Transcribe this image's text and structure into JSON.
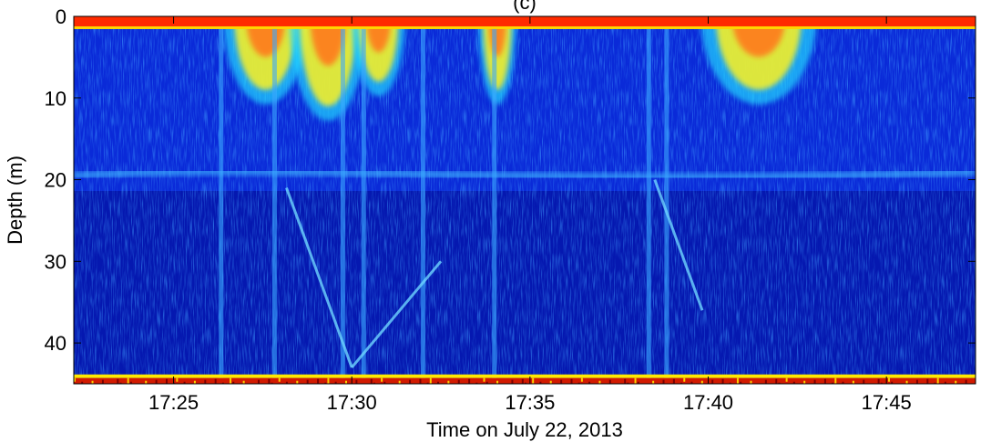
{
  "chart_data": {
    "type": "heatmap",
    "title": "(c)",
    "xlabel": "Time on July 22, 2013",
    "ylabel": "Depth (m)",
    "x_range": [
      "17:22:12",
      "17:47:30"
    ],
    "ylim": [
      0,
      45
    ],
    "y_reversed": true,
    "x_ticks": [
      "17:25",
      "17:30",
      "17:35",
      "17:40",
      "17:45"
    ],
    "y_ticks": [
      0,
      10,
      20,
      30,
      40
    ],
    "colormap": "jet",
    "colormap_stops": [
      "#00008f",
      "#0000ff",
      "#0080ff",
      "#00ffff",
      "#80ff80",
      "#ffff00",
      "#ff8000",
      "#ff0000",
      "#800000"
    ],
    "grid": false,
    "features": {
      "surface_band_depth_m": 1,
      "seabed_depth_m": 44.3,
      "scattering_layer_depth_m": 19.5,
      "surface_patches": [
        {
          "start": "17:26:40",
          "end": "17:28:30",
          "max_depth_m": 9
        },
        {
          "start": "17:28:30",
          "end": "17:30:10",
          "max_depth_m": 11
        },
        {
          "start": "17:30:10",
          "end": "17:31:20",
          "max_depth_m": 8
        },
        {
          "start": "17:33:40",
          "end": "17:34:30",
          "max_depth_m": 9
        },
        {
          "start": "17:40:10",
          "end": "17:42:40",
          "max_depth_m": 9
        }
      ],
      "vertical_streaks": [
        "17:26:20",
        "17:27:50",
        "17:29:45",
        "17:30:20",
        "17:32:00",
        "17:34:00",
        "17:38:20",
        "17:38:50"
      ],
      "diagonal_tracks": [
        {
          "start": "17:28:10",
          "end": "17:30:00",
          "depth_start_m": 21,
          "depth_end_m": 43
        },
        {
          "start": "17:30:00",
          "end": "17:32:30",
          "depth_start_m": 43,
          "depth_end_m": 30
        },
        {
          "start": "17:38:30",
          "end": "17:39:50",
          "depth_start_m": 20,
          "depth_end_m": 36
        }
      ]
    }
  }
}
